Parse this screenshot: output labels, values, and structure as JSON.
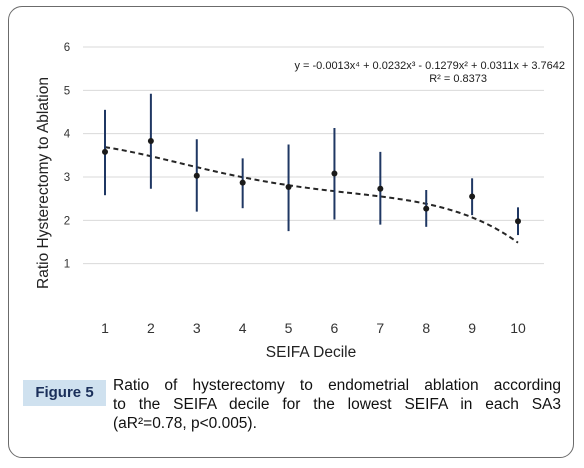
{
  "chart_data": {
    "type": "scatter",
    "xlabel": "SEIFA Decile",
    "ylabel": "Ratio Hysterectomy to Ablation",
    "x": [
      1,
      2,
      3,
      4,
      5,
      6,
      7,
      8,
      9,
      10
    ],
    "x_tick_labels": [
      "1",
      "2",
      "3",
      "4",
      "5",
      "6",
      "7",
      "8",
      "9",
      "10"
    ],
    "y_ticks": [
      1,
      2,
      3,
      4,
      5,
      6
    ],
    "y_tick_labels": [
      "1",
      "2",
      "3",
      "4",
      "5",
      "6"
    ],
    "xlim": [
      0.5,
      10.5
    ],
    "ylim": [
      0,
      6
    ],
    "grid": "horizontal",
    "series": [
      {
        "values": [
          3.58,
          3.83,
          3.03,
          2.87,
          2.77,
          3.08,
          2.73,
          2.27,
          2.55,
          1.98
        ],
        "err_low": [
          2.58,
          2.73,
          2.2,
          2.28,
          1.75,
          2.02,
          1.9,
          1.85,
          2.12,
          1.66
        ],
        "err_high": [
          4.55,
          4.92,
          3.87,
          3.43,
          3.75,
          4.13,
          3.58,
          2.7,
          2.97,
          2.3
        ],
        "color": "#1f3763"
      }
    ],
    "trendline": {
      "type": "polynomial",
      "order": 4,
      "style": "dashed",
      "color": "#262626",
      "coefficients": [
        -0.0013,
        0.0232,
        -0.1279,
        0.0311,
        3.7642
      ]
    },
    "annotations": {
      "equation": "y = -0.0013x⁴ + 0.0232x³ - 0.1279x² + 0.0311x + 3.7642",
      "r_squared": "R² = 0.8373"
    }
  },
  "caption": {
    "label": "Figure 5",
    "lines": [
      "Ratio of hysterectomy to endometrial ablation according",
      "to the SEIFA decile for the lowest SEIFA in each SA3",
      "(aR²=0.78, p<0.005)."
    ]
  },
  "colors": {
    "marker": "#1f3763",
    "caption_label_bg": "#cfe1ef",
    "caption_label_text": "#1a2f5a",
    "grid": "#d9d9d9"
  }
}
